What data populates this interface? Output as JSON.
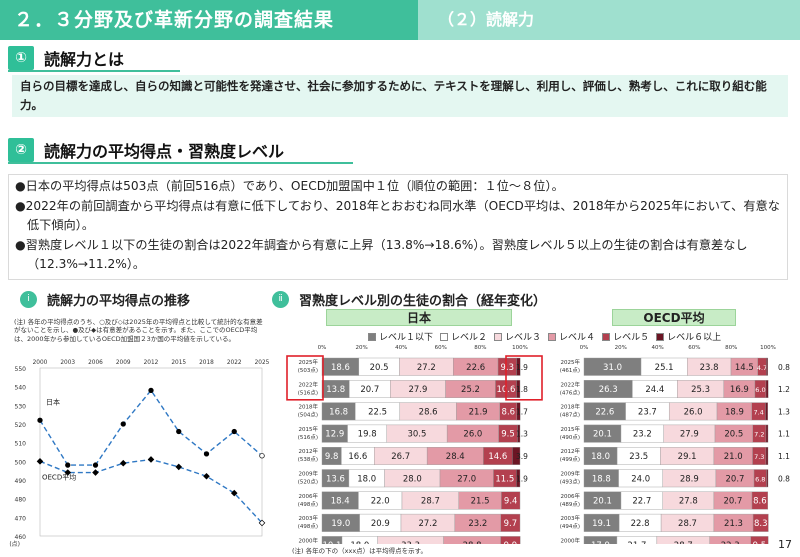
{
  "header": {
    "title": "２．３分野及び革新分野の調査結果",
    "subtitle": "（２）読解力"
  },
  "section1": {
    "number": "①",
    "title": "読解力とは",
    "definition": "自らの目標を達成し、自らの知識と可能性を発達させ、社会に参加するために、テキストを理解し、利用し、評価し、熟考し、これに取り組む能力。"
  },
  "section2": {
    "number": "②",
    "title": "読解力の平均得点・習熟度レベル",
    "bullets": [
      "●日本の平均得点は503点（前回516点）であり、OECD加盟国中１位（順位の範囲：１位～８位）。",
      "●2022年の前回調査から平均得点は有意に低下しており、2018年とおおむね同水準（OECD平均は、2018年から2025年において、有意な低下傾向）。",
      "●習熟度レベル１以下の生徒の割合は2022年調査から有意に上昇（13.8%→18.6%）。習熟度レベル５以上の生徒の割合は有意差なし（12.3%→11.2%）。"
    ]
  },
  "sub_left": {
    "marker": "ⅰ",
    "title": "読解力の平均得点の推移",
    "note": "(注) 各年の平均得点のうち、○及び◇は2025年の平均得点と比較して統計的な有意差がないことを示し、●及び◆は有意差があることを示す。また、ここでのOECD平均は、2000年から参加しているOECD加盟国２3か国の平均値を示している。"
  },
  "sub_right": {
    "marker": "ⅱ",
    "title": "習熟度レベル別の生徒の割合（経年変化）",
    "japan_label": "日本",
    "oecd_label": "OECD平均",
    "footnote": "(注) 各年の下の（xxx点）は平均得点を示す。"
  },
  "legend": [
    {
      "label": "レベル１以下",
      "color": "#7f7f7f"
    },
    {
      "label": "レベル２",
      "color": "#ffffff"
    },
    {
      "label": "レベル３",
      "color": "#f7d9dd"
    },
    {
      "label": "レベル４",
      "color": "#e39aa6"
    },
    {
      "label": "レベル５",
      "color": "#b3404f"
    },
    {
      "label": "レベル６以上",
      "color": "#6b1524"
    }
  ],
  "page_number": "17",
  "chart_data": [
    {
      "type": "line",
      "x": [
        "2000",
        "2003",
        "2006",
        "2009",
        "2012",
        "2015",
        "2018",
        "2022",
        "2025"
      ],
      "ylim": [
        460,
        550
      ],
      "yticks": [
        460,
        470,
        480,
        490,
        500,
        510,
        520,
        530,
        540,
        550
      ],
      "ytick_unit": "(点)",
      "series": [
        {
          "name": "日本",
          "color": "#2f78c4",
          "values": [
            522,
            498,
            498,
            520,
            538,
            516,
            504,
            516,
            503
          ]
        },
        {
          "name": "OECD平均",
          "color": "#2f78c4",
          "values": [
            500,
            494,
            494,
            499,
            501,
            497,
            492,
            483,
            467
          ]
        }
      ]
    },
    {
      "type": "bar",
      "stacked": true,
      "orientation": "horizontal",
      "name": "日本",
      "xlim": [
        0,
        100
      ],
      "xticks": [
        "0%",
        "20%",
        "40%",
        "60%",
        "80%",
        "100%"
      ],
      "categories": [
        {
          "year": "2025年",
          "score": "(503点)",
          "values": [
            18.6,
            20.5,
            27.2,
            22.6,
            9.3,
            1.9
          ]
        },
        {
          "year": "2022年",
          "score": "(516点)",
          "values": [
            13.8,
            20.7,
            27.9,
            25.2,
            10.6,
            1.8
          ]
        },
        {
          "year": "2018年",
          "score": "(504点)",
          "values": [
            16.8,
            22.5,
            28.6,
            21.9,
            8.6,
            1.7
          ]
        },
        {
          "year": "2015年",
          "score": "(516点)",
          "values": [
            12.9,
            19.8,
            30.5,
            26.0,
            9.5,
            1.3
          ]
        },
        {
          "year": "2012年",
          "score": "(538点)",
          "values": [
            9.8,
            16.6,
            26.7,
            28.4,
            14.6,
            3.9
          ]
        },
        {
          "year": "2009年",
          "score": "(520点)",
          "values": [
            13.6,
            18.0,
            28.0,
            27.0,
            11.5,
            1.9
          ]
        },
        {
          "year": "2006年",
          "score": "(498点)",
          "values": [
            18.4,
            22.0,
            28.7,
            21.5,
            9.4,
            0
          ]
        },
        {
          "year": "2003年",
          "score": "(498点)",
          "values": [
            19.0,
            20.9,
            27.2,
            23.2,
            9.7,
            0
          ]
        },
        {
          "year": "2000年",
          "score": "(522点)",
          "values": [
            10.1,
            18.0,
            33.3,
            28.8,
            9.9,
            0
          ]
        }
      ],
      "highlighted": [
        "2025年",
        "2022年"
      ]
    },
    {
      "type": "bar",
      "stacked": true,
      "orientation": "horizontal",
      "name": "OECD平均",
      "xlim": [
        0,
        100
      ],
      "xticks": [
        "0%",
        "20%",
        "40%",
        "60%",
        "80%",
        "100%"
      ],
      "categories": [
        {
          "year": "2025年",
          "score": "(461点)",
          "values": [
            31.0,
            25.1,
            23.8,
            14.5,
            4.7,
            0.8
          ]
        },
        {
          "year": "2022年",
          "score": "(476点)",
          "values": [
            26.3,
            24.4,
            25.3,
            16.9,
            6.0,
            1.2
          ]
        },
        {
          "year": "2018年",
          "score": "(487点)",
          "values": [
            22.6,
            23.7,
            26.0,
            18.9,
            7.4,
            1.3
          ]
        },
        {
          "year": "2015年",
          "score": "(490点)",
          "values": [
            20.1,
            23.2,
            27.9,
            20.5,
            7.2,
            1.1
          ]
        },
        {
          "year": "2012年",
          "score": "(499点)",
          "values": [
            18.0,
            23.5,
            29.1,
            21.0,
            7.3,
            1.1
          ]
        },
        {
          "year": "2009年",
          "score": "(493点)",
          "values": [
            18.8,
            24.0,
            28.9,
            20.7,
            6.8,
            0.8
          ]
        },
        {
          "year": "2006年",
          "score": "(489点)",
          "values": [
            20.1,
            22.7,
            27.8,
            20.7,
            8.6,
            0
          ]
        },
        {
          "year": "2003年",
          "score": "(494点)",
          "values": [
            19.1,
            22.8,
            28.7,
            21.3,
            8.3,
            0
          ]
        },
        {
          "year": "2000年",
          "score": "(500点)",
          "values": [
            17.9,
            21.7,
            28.7,
            22.3,
            9.5,
            0
          ]
        }
      ]
    }
  ]
}
